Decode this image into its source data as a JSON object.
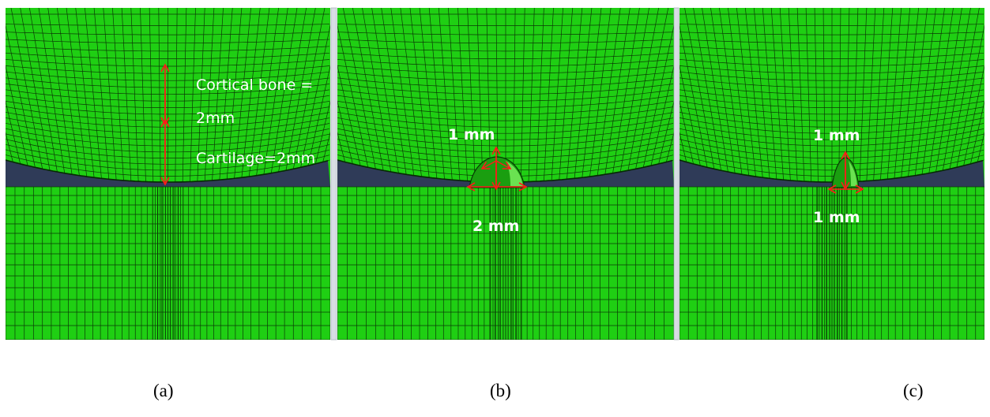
{
  "colors": {
    "mesh_fill": "#1fcf13",
    "mesh_line": "#0b3a06",
    "gap_fill": "#2f3b58",
    "divider": "#d8dde4",
    "arrow": "#ff1a1a",
    "label": "#ffffff"
  },
  "panels": [
    {
      "id": "a",
      "caption": "(a)",
      "labels": [
        "Cortical bone =",
        "2mm",
        "Cartilage=2mm"
      ]
    },
    {
      "id": "b",
      "caption": "(b)",
      "labels": [
        "1 mm",
        "2 mm"
      ]
    },
    {
      "id": "c",
      "caption": "(c)",
      "labels": [
        "1 mm",
        "1 mm"
      ]
    }
  ]
}
